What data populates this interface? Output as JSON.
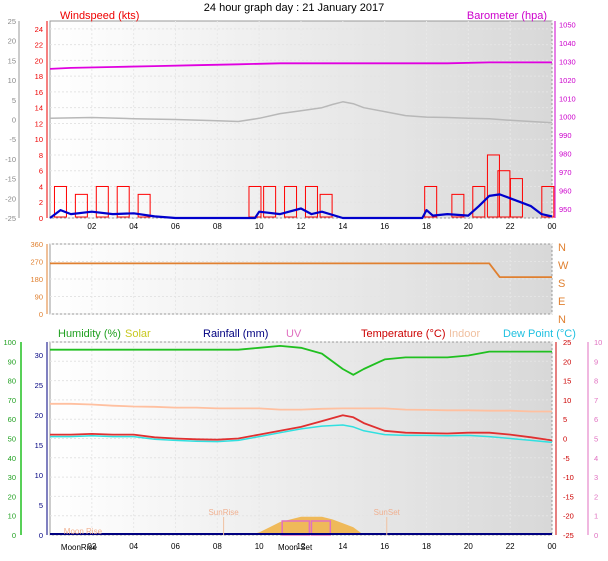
{
  "title": "24 hour graph day : 21 January 2017",
  "colors": {
    "wind": "#ff0000",
    "wind_avg": "#0000cc",
    "baro": "#e000e0",
    "temp": "#e03030",
    "dew": "#30e0e0",
    "hum": "#20c020",
    "indoor": "#ffc0a0",
    "dir": "#e08030",
    "solar": "#f0b040",
    "uv": "#e070c0"
  },
  "chart_data": [
    {
      "type": "line",
      "name": "wind_baro",
      "y_left_label": "Windspeed (kts)",
      "y_right_label": "Barometer (hpa)",
      "x_ticks": [
        "02",
        "04",
        "06",
        "08",
        "10",
        "12",
        "14",
        "16",
        "18",
        "20",
        "22",
        "00"
      ],
      "x_range_hours": [
        0,
        24
      ],
      "y_wind_ticks": [
        "0",
        "2",
        "4",
        "6",
        "8",
        "10",
        "12",
        "14",
        "16",
        "18",
        "20",
        "22",
        "24"
      ],
      "y_wind_range": [
        0,
        25
      ],
      "y_baro_ticks": [
        "950",
        "960",
        "970",
        "980",
        "990",
        "1000",
        "1010",
        "1020",
        "1030",
        "1040",
        "1050"
      ],
      "y_baro_range": [
        945,
        1052
      ],
      "y_far_left_ticks": [
        "-25",
        "-20",
        "-15",
        "-10",
        "-5",
        "0",
        "5",
        "10",
        "15",
        "20",
        "25"
      ],
      "series": {
        "baro_hours": [
          0,
          1,
          3,
          5,
          7,
          9,
          11,
          13,
          15,
          17,
          19,
          21,
          23,
          24
        ],
        "baro_hpa": [
          1026,
          1026.5,
          1027,
          1027.5,
          1028,
          1028.5,
          1029,
          1029,
          1029,
          1029,
          1029,
          1029.5,
          1029.5,
          1029.5
        ],
        "gray_hours": [
          0,
          2,
          4,
          6,
          8,
          9,
          10,
          11,
          12,
          13,
          13.5,
          14,
          14.5,
          15,
          16,
          17,
          18,
          19,
          20,
          21,
          22,
          23,
          24
        ],
        "gray_values": [
          0.3,
          0.5,
          0.2,
          0,
          -0.3,
          -0.5,
          0.3,
          1.5,
          2.2,
          3.0,
          3.8,
          4.5,
          4.0,
          3.0,
          2.0,
          1.0,
          0.6,
          0.5,
          0.3,
          0.2,
          -0.2,
          -0.5,
          -0.8
        ],
        "wind_avg_hours": [
          0,
          0.5,
          1,
          2,
          3,
          4,
          5,
          6,
          8,
          9.8,
          10,
          11,
          12,
          12.5,
          13,
          14,
          17.8,
          18,
          18.3,
          19,
          20,
          20.5,
          21,
          21.5,
          22,
          22.5,
          23,
          23.5,
          24
        ],
        "wind_avg_kts": [
          0,
          1.0,
          0.5,
          0.8,
          0.5,
          0.6,
          0.2,
          0,
          0,
          0,
          0.8,
          0.5,
          1.2,
          0.5,
          0.8,
          0,
          0,
          1.0,
          0.3,
          0.5,
          0.3,
          1.5,
          2.8,
          3.0,
          2.5,
          2.0,
          1.5,
          0.5,
          0.2
        ],
        "gust_peaks_hours": [
          0.5,
          1.5,
          2.5,
          3.5,
          4.5,
          9.8,
          10.5,
          11.5,
          12.5,
          13.2,
          18.2,
          19.5,
          20.5,
          21.2,
          21.7,
          22.3,
          23.8
        ],
        "gust_peaks_kts": [
          4,
          3,
          4,
          4,
          3,
          4,
          4,
          4,
          4,
          3,
          4,
          3,
          4,
          8,
          6,
          5,
          4
        ]
      }
    },
    {
      "type": "line",
      "name": "wind_direction",
      "y_ticks": [
        "0",
        "90",
        "180",
        "270",
        "360"
      ],
      "y_range": [
        0,
        360
      ],
      "compass": [
        "N",
        "W",
        "S",
        "E",
        "N"
      ],
      "series": {
        "hours": [
          0,
          21,
          21.5,
          24
        ],
        "degrees": [
          260,
          260,
          190,
          190
        ]
      }
    },
    {
      "type": "line",
      "name": "temp_hum",
      "legend": [
        "Humidity (%)",
        "Solar",
        "Rainfall (mm)",
        "UV",
        "Temperature (°C)",
        "Indoor",
        "Dew Point (°C)"
      ],
      "y_hum_ticks": [
        "0",
        "10",
        "20",
        "30",
        "40",
        "50",
        "60",
        "70",
        "80",
        "90",
        "100"
      ],
      "y_rain_ticks": [
        "0",
        "5",
        "10",
        "15",
        "20",
        "25",
        "30"
      ],
      "y_temp_ticks": [
        "-25",
        "-20",
        "-15",
        "-10",
        "-5",
        "0",
        "5",
        "10",
        "15",
        "20",
        "25"
      ],
      "y_uv_ticks": [
        "0",
        "1",
        "2",
        "3",
        "4",
        "5",
        "6",
        "7",
        "8",
        "9",
        "10"
      ],
      "y_temp_range": [
        -25,
        25
      ],
      "x_ticks": [
        "02",
        "04",
        "06",
        "08",
        "10",
        "12",
        "14",
        "16",
        "18",
        "20",
        "22",
        "00"
      ],
      "series": {
        "hours": [
          0,
          1,
          2,
          3,
          4,
          5,
          6,
          7,
          8,
          9,
          10,
          11,
          12,
          13,
          14,
          14.5,
          15,
          16,
          17,
          18,
          19,
          20,
          21,
          22,
          23,
          24
        ],
        "humidity_pct": [
          96,
          96,
          96,
          96,
          96,
          96,
          96,
          96,
          96,
          96,
          97,
          98,
          97,
          94,
          86,
          83,
          86,
          91,
          92,
          92,
          92,
          93,
          95,
          95,
          95,
          95
        ],
        "temp_c": [
          1,
          1,
          1.2,
          1,
          1,
          0.3,
          0,
          -0.2,
          -0.3,
          0,
          1,
          2,
          3,
          4.5,
          6,
          5.5,
          4,
          2,
          1.5,
          1.4,
          1.3,
          1.5,
          1.5,
          1,
          0.3,
          -0.5
        ],
        "dew_c": [
          0.5,
          0.5,
          0.7,
          0.5,
          0.5,
          -0.2,
          -0.5,
          -0.7,
          -0.8,
          -0.5,
          0.5,
          1.5,
          2.5,
          3.2,
          3.5,
          3.0,
          2.0,
          1.0,
          0.8,
          0.8,
          0.7,
          0.8,
          0.5,
          0,
          -0.5,
          -1.0
        ],
        "indoor_c": [
          9,
          9,
          8.8,
          8.5,
          8.3,
          8.2,
          8.0,
          8.0,
          7.8,
          7.8,
          7.8,
          7.5,
          7.5,
          7.7,
          7.8,
          7.8,
          7.8,
          7.8,
          7.5,
          7.4,
          7.3,
          7.3,
          7.2,
          7.2,
          7.0,
          7.0
        ],
        "solar_hours": [
          9.5,
          10,
          10.5,
          11,
          11.5,
          12,
          12.5,
          13,
          13.5,
          14,
          14.5,
          15
        ],
        "solar_rel": [
          0,
          0.1,
          0.3,
          0.5,
          0.6,
          0.7,
          0.7,
          0.7,
          0.6,
          0.45,
          0.3,
          0
        ]
      },
      "annotations": {
        "sunrise": "SunRise",
        "sunset": "SunSet",
        "moonrise": "Moon Rise",
        "moonrise_axis": "MoonRise",
        "moonset_axis": "Moon Set",
        "sunrise_hour": 8.3,
        "sunset_hour": 16.1,
        "moonrise_hour": 1.0,
        "moonset_hour": 12.1
      }
    }
  ]
}
